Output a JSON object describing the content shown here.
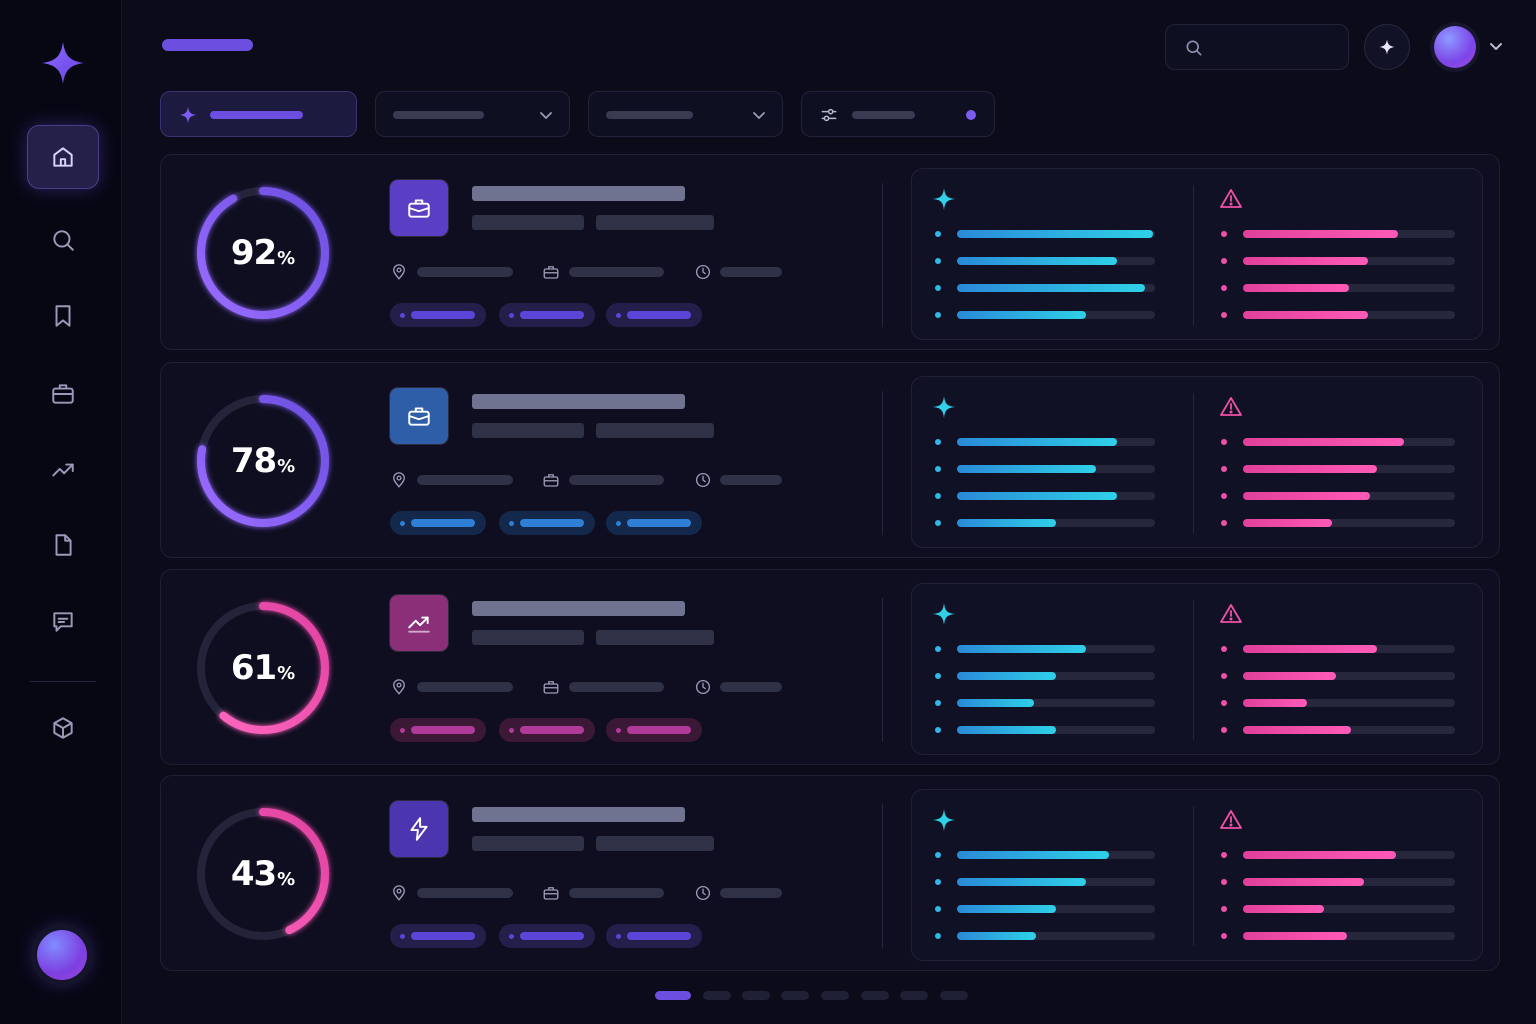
{
  "cards": [
    {
      "score": "92",
      "unit": "%",
      "ring_fraction": 0.92,
      "ring_colors": [
        "#6c4fe0",
        "#9a6cff"
      ],
      "icon": "briefcase-icon",
      "icon_bg": "#5a3fc4",
      "chip_color": "#5b45d8",
      "chip_bg": "#231f4a",
      "strengths": [
        0.99,
        0.81,
        0.95,
        0.65
      ],
      "risks": [
        0.73,
        0.59,
        0.5,
        0.59
      ]
    },
    {
      "score": "78",
      "unit": "%",
      "ring_fraction": 0.78,
      "ring_colors": [
        "#6c4fe0",
        "#9a6cff"
      ],
      "icon": "briefcase-icon",
      "icon_bg": "#2e5ea8",
      "chip_color": "#2f7fd6",
      "chip_bg": "#13284a",
      "strengths": [
        0.81,
        0.7,
        0.81,
        0.5
      ],
      "risks": [
        0.76,
        0.63,
        0.6,
        0.42
      ]
    },
    {
      "score": "61",
      "unit": "%",
      "ring_fraction": 0.61,
      "ring_colors": [
        "#e040a0",
        "#ff6ac0"
      ],
      "icon": "trend-up-icon",
      "icon_bg": "#8a2f78",
      "chip_color": "#b03a98",
      "chip_bg": "#3a1836",
      "strengths": [
        0.65,
        0.5,
        0.39,
        0.5
      ],
      "risks": [
        0.63,
        0.44,
        0.3,
        0.51
      ]
    },
    {
      "score": "43",
      "unit": "%",
      "ring_fraction": 0.43,
      "ring_colors": [
        "#e040a0",
        "#ff6ac0"
      ],
      "icon": "lightning-icon",
      "icon_bg": "#4b36b0",
      "chip_color": "#5b45d8",
      "chip_bg": "#231f4a",
      "strengths": [
        0.77,
        0.65,
        0.5,
        0.4
      ],
      "risks": [
        0.72,
        0.57,
        0.38,
        0.49
      ]
    }
  ],
  "colors": {
    "accent": "#6c4fe0",
    "strength": "#22c4e0",
    "risk": "#f050a8"
  },
  "pager": {
    "count": 8,
    "active": 0
  }
}
